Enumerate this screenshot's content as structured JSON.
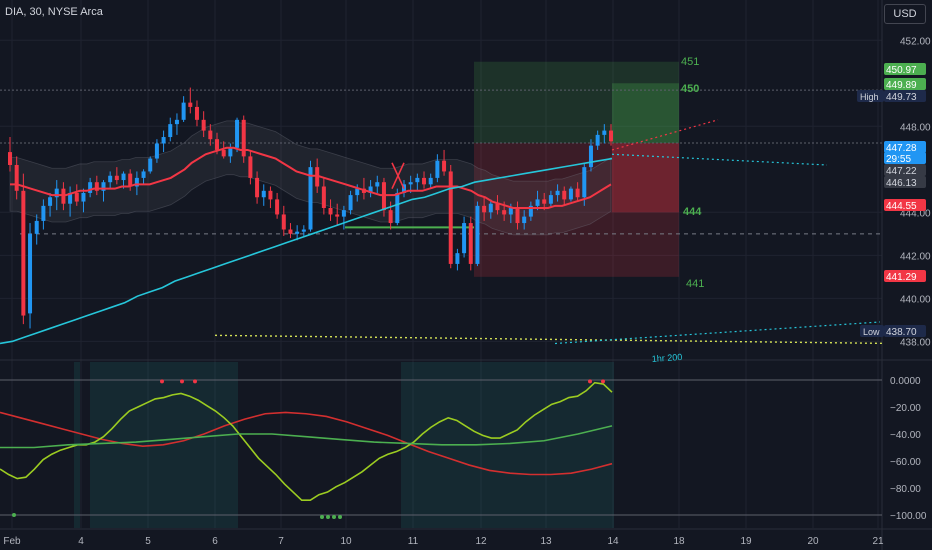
{
  "header": {
    "symbol": "DIA, 30, NYSE Arca",
    "currency": "USD"
  },
  "price_axis": {
    "ticks": [
      "452.00",
      "448.00",
      "444.00",
      "442.00",
      "440.00",
      "438.00"
    ]
  },
  "osc_axis": {
    "ticks": [
      "0.0000",
      "−20.00",
      "−40.00",
      "−60.00",
      "−80.00",
      "−100.00"
    ]
  },
  "time_axis": {
    "ticks": [
      "Feb",
      "4",
      "5",
      "6",
      "7",
      "10",
      "11",
      "12",
      "13",
      "14",
      "18",
      "19",
      "20",
      "21"
    ]
  },
  "price_badges": [
    {
      "text": "450.97",
      "bg": "#4caf50",
      "fg": "#ffffff"
    },
    {
      "text": "449.89",
      "bg": "#4caf50",
      "fg": "#ffffff"
    },
    {
      "text": "449.73",
      "bg": "#1e2a4a",
      "fg": "#d1d4dc"
    },
    {
      "text": "447.28",
      "bg": "#2196f3",
      "fg": "#ffffff"
    },
    {
      "text": "29:55",
      "bg": "#2196f3",
      "fg": "#ffffff"
    },
    {
      "text": "447.22",
      "bg": "#363a45",
      "fg": "#d1d4dc"
    },
    {
      "text": "446.13",
      "bg": "#363a45",
      "fg": "#d1d4dc"
    },
    {
      "text": "444.55",
      "bg": "#f23645",
      "fg": "#ffffff"
    },
    {
      "text": "441.29",
      "bg": "#f23645",
      "fg": "#ffffff"
    },
    {
      "text": "438.70",
      "bg": "#1e2a4a",
      "fg": "#d1d4dc"
    }
  ],
  "side_tags": {
    "high": "High",
    "low": "Low"
  },
  "annotations": {
    "lvl451": "451",
    "lvl450": "450",
    "lvl444": "444",
    "lvl441": "441",
    "ma200": "1hr 200"
  },
  "colors": {
    "background": "#131722",
    "up_candle": "#2196f3",
    "down_candle": "#f23645",
    "neutral_candle": "#787b86",
    "ema_red": "#f23645",
    "ma_cyan": "#26c6da",
    "osc_green": "#9ccc21",
    "osc_darkgreen": "#4caf50",
    "osc_red": "#d32f2f",
    "target_zone": "#4caf50",
    "stop_zone": "#f23645"
  },
  "chart_data": {
    "type": "candlestick",
    "timeframe": "30",
    "price_axis_range": [
      436.9,
      453.5
    ],
    "candles": [
      [
        446.8,
        447.5,
        445.9,
        446.2
      ],
      [
        446.2,
        446.6,
        444.6,
        445.0
      ],
      [
        445.0,
        445.8,
        438.8,
        439.2
      ],
      [
        439.3,
        443.5,
        438.6,
        443.0
      ],
      [
        443.0,
        443.9,
        442.5,
        443.6
      ],
      [
        443.6,
        444.6,
        443.2,
        444.3
      ],
      [
        444.3,
        444.9,
        443.8,
        444.7
      ],
      [
        444.7,
        445.5,
        444.1,
        445.1
      ],
      [
        445.1,
        445.4,
        444.1,
        444.4
      ],
      [
        444.4,
        445.2,
        443.8,
        444.9
      ],
      [
        444.9,
        445.3,
        444.3,
        444.5
      ],
      [
        444.5,
        445.1,
        444.0,
        444.9
      ],
      [
        444.9,
        445.6,
        444.7,
        445.4
      ],
      [
        445.4,
        445.7,
        444.8,
        445.0
      ],
      [
        445.0,
        445.5,
        444.5,
        445.4
      ],
      [
        445.4,
        445.9,
        445.1,
        445.7
      ],
      [
        445.7,
        446.1,
        445.3,
        445.5
      ],
      [
        445.5,
        445.9,
        445.1,
        445.8
      ],
      [
        445.8,
        446.0,
        445.0,
        445.2
      ],
      [
        445.2,
        445.9,
        444.8,
        445.6
      ],
      [
        445.6,
        446.0,
        445.3,
        445.9
      ],
      [
        445.9,
        446.6,
        445.8,
        446.5
      ],
      [
        446.5,
        447.4,
        446.3,
        447.2
      ],
      [
        447.2,
        447.8,
        446.8,
        447.5
      ],
      [
        447.5,
        448.4,
        447.3,
        448.1
      ],
      [
        448.1,
        448.6,
        447.6,
        448.3
      ],
      [
        448.3,
        449.4,
        448.2,
        449.1
      ],
      [
        449.1,
        449.8,
        448.6,
        448.9
      ],
      [
        448.9,
        449.2,
        448.0,
        448.3
      ],
      [
        448.3,
        448.7,
        447.5,
        447.8
      ],
      [
        447.8,
        448.1,
        447.1,
        447.4
      ],
      [
        447.4,
        447.7,
        446.7,
        446.9
      ],
      [
        446.9,
        447.3,
        446.5,
        446.6
      ],
      [
        446.6,
        447.2,
        446.3,
        447.0
      ],
      [
        447.0,
        448.4,
        446.8,
        448.3
      ],
      [
        448.3,
        448.5,
        446.3,
        446.6
      ],
      [
        446.6,
        446.9,
        445.3,
        445.6
      ],
      [
        445.6,
        445.9,
        444.4,
        444.7
      ],
      [
        444.7,
        445.3,
        444.3,
        445.0
      ],
      [
        445.0,
        445.2,
        444.2,
        444.6
      ],
      [
        444.6,
        444.9,
        443.7,
        443.9
      ],
      [
        443.9,
        444.3,
        442.9,
        443.2
      ],
      [
        443.2,
        443.5,
        442.8,
        443.0
      ],
      [
        443.0,
        443.4,
        442.7,
        443.1
      ],
      [
        443.1,
        443.4,
        442.9,
        443.2
      ],
      [
        443.2,
        446.4,
        443.1,
        446.1
      ],
      [
        446.1,
        446.5,
        444.9,
        445.2
      ],
      [
        445.2,
        445.6,
        443.9,
        444.2
      ],
      [
        444.2,
        444.6,
        443.6,
        443.9
      ],
      [
        443.9,
        444.4,
        443.4,
        443.8
      ],
      [
        443.8,
        444.3,
        443.2,
        444.1
      ],
      [
        444.1,
        445.0,
        443.9,
        444.8
      ],
      [
        444.8,
        445.3,
        444.5,
        445.1
      ],
      [
        445.1,
        445.6,
        444.6,
        444.9
      ],
      [
        444.9,
        445.5,
        444.7,
        445.2
      ],
      [
        445.2,
        445.7,
        444.9,
        445.4
      ],
      [
        445.4,
        445.6,
        443.8,
        444.1
      ],
      [
        444.1,
        444.5,
        443.2,
        443.5
      ],
      [
        443.5,
        445.1,
        443.4,
        444.9
      ],
      [
        444.9,
        445.5,
        444.7,
        445.3
      ],
      [
        445.3,
        445.7,
        444.9,
        445.4
      ],
      [
        445.4,
        445.8,
        445.0,
        445.6
      ],
      [
        445.6,
        445.9,
        445.1,
        445.3
      ],
      [
        445.3,
        445.8,
        445.1,
        445.6
      ],
      [
        445.6,
        446.7,
        445.4,
        446.4
      ],
      [
        446.4,
        446.9,
        445.7,
        445.9
      ],
      [
        445.9,
        446.2,
        441.4,
        441.6
      ],
      [
        441.6,
        442.3,
        441.3,
        442.1
      ],
      [
        442.1,
        443.8,
        441.9,
        443.5
      ],
      [
        443.5,
        443.8,
        441.3,
        441.6
      ],
      [
        441.6,
        444.5,
        441.5,
        444.3
      ],
      [
        444.3,
        444.7,
        443.6,
        444.0
      ],
      [
        444.0,
        444.6,
        443.7,
        444.4
      ],
      [
        444.4,
        444.8,
        443.9,
        444.1
      ],
      [
        444.1,
        444.5,
        443.6,
        443.9
      ],
      [
        443.9,
        444.4,
        443.5,
        444.2
      ],
      [
        444.2,
        444.5,
        443.2,
        443.5
      ],
      [
        443.5,
        444.1,
        443.2,
        443.8
      ],
      [
        443.8,
        444.5,
        443.6,
        444.3
      ],
      [
        444.3,
        445.0,
        444.1,
        444.6
      ],
      [
        444.6,
        444.9,
        444.1,
        444.4
      ],
      [
        444.4,
        445.0,
        444.2,
        444.8
      ],
      [
        444.8,
        445.3,
        444.5,
        445.0
      ],
      [
        445.0,
        445.2,
        444.3,
        444.6
      ],
      [
        444.6,
        445.2,
        444.5,
        445.1
      ],
      [
        445.1,
        445.4,
        444.5,
        444.7
      ],
      [
        444.7,
        446.3,
        444.3,
        446.1
      ],
      [
        446.1,
        447.4,
        445.9,
        447.1
      ],
      [
        447.1,
        447.8,
        446.9,
        447.6
      ],
      [
        447.6,
        448.1,
        447.2,
        447.8
      ],
      [
        447.8,
        448.1,
        447.1,
        447.3
      ]
    ],
    "ema_red": [
      445.3,
      445.3,
      445.2,
      445.1,
      445.0,
      444.9,
      444.8,
      444.8,
      444.8,
      444.9,
      445.0,
      445.0,
      445.1,
      445.1,
      445.1,
      445.1,
      445.2,
      445.2,
      445.3,
      445.3,
      445.3,
      445.4,
      445.5,
      445.6,
      445.8,
      446.0,
      446.3,
      446.5,
      446.7,
      446.8,
      446.9,
      447.0,
      447.0,
      446.9,
      446.9,
      446.8,
      446.7,
      446.6,
      446.5,
      446.3,
      446.1,
      445.9,
      445.8,
      445.7,
      445.7,
      445.6,
      445.5,
      445.4,
      445.3,
      445.2,
      445.1,
      445.0,
      444.9,
      444.8,
      444.8,
      444.8,
      444.9,
      445.0,
      445.0,
      445.0,
      445.1,
      445.2,
      445.2,
      445.2,
      445.2,
      445.1,
      445.0,
      444.8,
      444.7,
      444.5,
      444.4,
      444.3,
      444.2,
      444.2,
      444.2,
      444.2,
      444.2,
      444.2,
      444.3,
      444.3,
      444.4,
      444.5,
      444.6,
      444.7,
      444.9,
      445.1,
      445.3
    ],
    "ma_cyan": [
      437.9,
      438.0,
      438.2,
      438.4,
      438.6,
      438.8,
      439.0,
      439.2,
      439.4,
      439.6,
      439.8,
      440.1,
      440.3,
      440.5,
      440.8,
      441.0,
      441.2,
      441.4,
      441.6,
      441.8,
      442.0,
      442.2,
      442.4,
      442.6,
      442.8,
      443.0,
      443.2,
      443.4,
      443.6,
      443.8,
      444.0,
      444.2,
      444.4,
      444.6,
      444.7,
      444.9,
      445.1,
      445.2,
      445.4,
      445.5,
      445.6,
      445.7,
      445.8,
      445.9,
      446.0,
      446.1,
      446.2,
      446.3,
      446.4,
      446.5
    ],
    "trade_setup": {
      "target_top": 451,
      "target": 450,
      "entry": 447.22,
      "stop": 444,
      "stop_bottom": 441,
      "stop_label": 441
    },
    "levels": [
      443.0,
      438.0
    ],
    "oscillator": {
      "range": [
        -100,
        0
      ],
      "fast_line": [
        -66,
        -70,
        -73,
        -72,
        -66,
        -59,
        -55,
        -52,
        -50,
        -48,
        -48,
        -46,
        -42,
        -36,
        -29,
        -23,
        -20,
        -17,
        -14,
        -13,
        -11,
        -10,
        -12,
        -15,
        -19,
        -23,
        -28,
        -34,
        -42,
        -50,
        -58,
        -64,
        -70,
        -77,
        -83,
        -89,
        -89,
        -85,
        -83,
        -79,
        -76,
        -72,
        -68,
        -63,
        -58,
        -55,
        -53,
        -50,
        -46,
        -40,
        -35,
        -31,
        -28,
        -30,
        -34,
        -38,
        -41,
        -43,
        -43,
        -40,
        -37,
        -31,
        -26,
        -22,
        -18,
        -16,
        -13,
        -12,
        -8,
        -2,
        -3,
        -9
      ],
      "slow_line": [
        -50,
        -50,
        -48,
        -47,
        -46,
        -44,
        -42,
        -40,
        -40,
        -42,
        -44,
        -46,
        -47,
        -48,
        -48,
        -47,
        -45,
        -40,
        -34
      ],
      "red_line": [
        -24,
        -28,
        -32,
        -36,
        -40,
        -44,
        -47,
        -49,
        -48,
        -45,
        -40,
        -34,
        -29,
        -25,
        -24,
        -25,
        -27,
        -31,
        -36,
        -41,
        -47,
        -53,
        -58,
        -63,
        -67,
        -69,
        -70,
        -70,
        -69,
        -66,
        -62
      ]
    },
    "time_ticks": [
      "Feb",
      "4",
      "5",
      "6",
      "7",
      "10",
      "11",
      "12",
      "13",
      "14",
      "18",
      "19",
      "20",
      "21"
    ]
  }
}
